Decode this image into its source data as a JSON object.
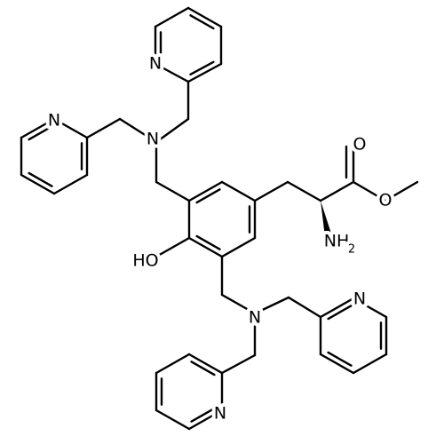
{
  "atoms": [
    "N",
    "N",
    "N",
    "N",
    "N",
    "N",
    "HO",
    "O",
    "O"
  ],
  "amine": {
    "text": "NH",
    "subscript": "2"
  }
}
